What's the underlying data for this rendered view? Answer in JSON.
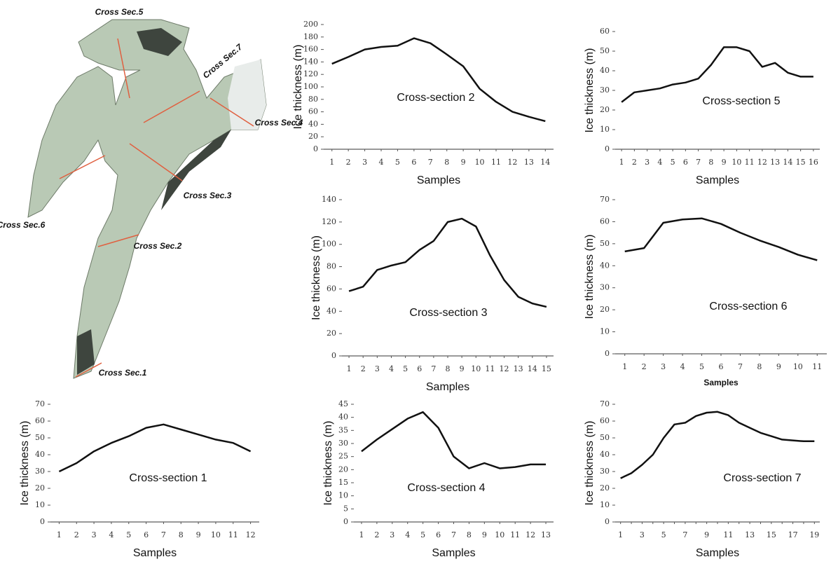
{
  "map": {
    "labels": [
      "Cross Sec.5",
      "Cross Sec.7",
      "Cross Sec.4",
      "Cross Sec.3",
      "Cross Sec.6",
      "Cross Sec.2",
      "Cross Sec.1"
    ]
  },
  "chart_data": [
    {
      "type": "line",
      "annotation": "Cross-section 2",
      "y_label": "Ice thickness (m)",
      "x_label": "Samples",
      "categories": [
        "1",
        "2",
        "3",
        "4",
        "5",
        "6",
        "7",
        "8",
        "9",
        "10",
        "11",
        "12",
        "13",
        "14"
      ],
      "values": [
        137,
        148,
        160,
        164,
        166,
        178,
        170,
        152,
        133,
        97,
        76,
        60,
        52,
        45
      ],
      "color": "#111111",
      "ylim": [
        0,
        200
      ],
      "yticks": [
        0,
        20,
        40,
        60,
        80,
        100,
        120,
        140,
        160,
        180,
        200
      ]
    },
    {
      "type": "line",
      "annotation": "Cross-section 5",
      "y_label": "Ice thickness (m)",
      "x_label": "Samples",
      "categories": [
        "1",
        "2",
        "3",
        "4",
        "5",
        "6",
        "7",
        "8",
        "9",
        "10",
        "11",
        "12",
        "13",
        "14",
        "15",
        "16"
      ],
      "values": [
        24,
        29,
        30,
        31,
        33,
        34,
        36,
        43,
        52,
        52,
        50,
        42,
        44,
        39,
        37,
        37
      ],
      "color": "#111111",
      "ylim": [
        0,
        60
      ],
      "yticks": [
        0,
        10,
        20,
        30,
        40,
        50,
        60
      ]
    },
    {
      "type": "line",
      "annotation": "Cross-section 3",
      "y_label": "Ice thickness (m)",
      "x_label": "Samples",
      "categories": [
        "1",
        "2",
        "3",
        "4",
        "5",
        "6",
        "7",
        "8",
        "9",
        "10",
        "11",
        "12",
        "13",
        "14",
        "15"
      ],
      "values": [
        58,
        62,
        77,
        81,
        84,
        95,
        103,
        120,
        123,
        116,
        90,
        68,
        53,
        47,
        44
      ],
      "color": "#111111",
      "ylim": [
        0,
        140
      ],
      "yticks": [
        0,
        20,
        40,
        60,
        80,
        100,
        120,
        140
      ]
    },
    {
      "type": "line",
      "annotation": "Cross-section 6",
      "y_label": "Ice thickness (m)",
      "x_label": "Samples",
      "categories": [
        "1",
        "2",
        "3",
        "4",
        "5",
        "6",
        "7",
        "8",
        "9",
        "10",
        "11"
      ],
      "values": [
        46.5,
        48,
        59.5,
        61,
        61.5,
        59,
        55,
        51.5,
        48.5,
        45,
        42.5
      ],
      "color": "#111111",
      "ylim": [
        0,
        70
      ],
      "yticks": [
        0,
        10,
        20,
        30,
        40,
        50,
        60,
        70
      ]
    },
    {
      "type": "line",
      "annotation": "Cross-section 1",
      "y_label": "Ice thickness (m)",
      "x_label": "Samples",
      "categories": [
        "1",
        "2",
        "3",
        "4",
        "5",
        "6",
        "7",
        "8",
        "9",
        "10",
        "11",
        "12"
      ],
      "values": [
        30,
        35,
        42,
        47,
        51,
        56,
        58,
        55,
        52,
        49,
        47,
        42
      ],
      "color": "#111111",
      "ylim": [
        0,
        70
      ],
      "yticks": [
        0,
        10,
        20,
        30,
        40,
        50,
        60,
        70
      ]
    },
    {
      "type": "line",
      "annotation": "Cross-section 4",
      "y_label": "Ice thickness (m)",
      "x_label": "Samples",
      "categories": [
        "1",
        "2",
        "3",
        "4",
        "5",
        "6",
        "7",
        "8",
        "9",
        "10",
        "11",
        "12",
        "13"
      ],
      "values": [
        27,
        31.5,
        35.5,
        39.5,
        42,
        36,
        25,
        20.5,
        22.5,
        20.5,
        21,
        22,
        22
      ],
      "color": "#111111",
      "ylim": [
        0,
        45
      ],
      "yticks": [
        0,
        5,
        10,
        15,
        20,
        25,
        30,
        35,
        40,
        45
      ]
    },
    {
      "type": "line",
      "annotation": "Cross-section 7",
      "y_label": "Ice thickness (m)",
      "x_label": "Samples",
      "categories": [
        "1",
        null,
        "3",
        null,
        "5",
        null,
        "7",
        null,
        "9",
        null,
        "11",
        null,
        "13",
        null,
        "15",
        null,
        "17",
        null,
        "19"
      ],
      "values": [
        26,
        29,
        34,
        40,
        50,
        58,
        59,
        63,
        65,
        65.5,
        63.5,
        59,
        56,
        53,
        51,
        49,
        48.5,
        48,
        48
      ],
      "color": "#111111",
      "ylim": [
        0,
        70
      ],
      "yticks": [
        0,
        10,
        20,
        30,
        40,
        50,
        60,
        70
      ]
    }
  ]
}
